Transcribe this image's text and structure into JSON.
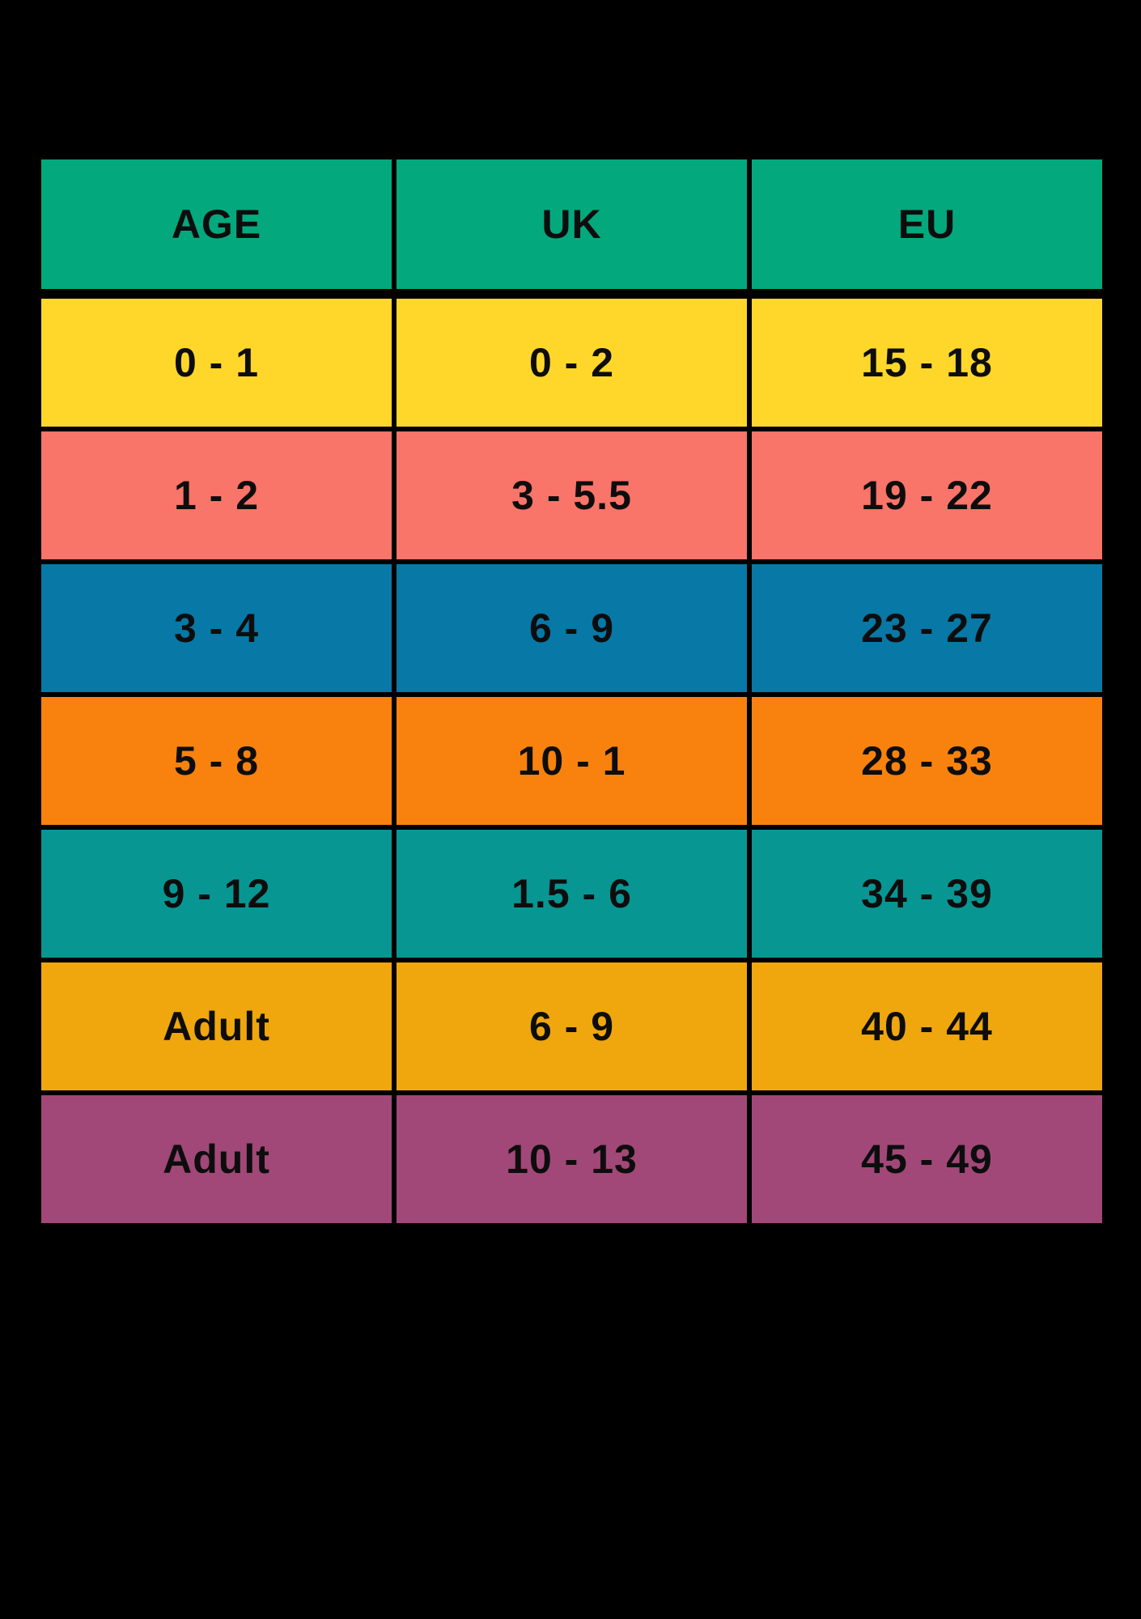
{
  "chart_data": {
    "type": "table",
    "title": "",
    "columns": [
      "AGE",
      "UK",
      "EU"
    ],
    "rows": [
      [
        "0 - 1",
        "0 - 2",
        "15 - 18"
      ],
      [
        "1 - 2",
        "3 - 5.5",
        "19 - 22"
      ],
      [
        "3 - 4",
        "6 - 9",
        "23 - 27"
      ],
      [
        "5 - 8",
        "10 - 1",
        "28 - 33"
      ],
      [
        "9 - 12",
        "1.5 - 6",
        "34 - 39"
      ],
      [
        "Adult",
        "6 - 9",
        "40 - 44"
      ],
      [
        "Adult",
        "10 - 13",
        "45 - 49"
      ]
    ],
    "header_color": "#04A87D",
    "row_colors": [
      "#FFD72B",
      "#F97469",
      "#0878A6",
      "#F8820D",
      "#089693",
      "#EFA70D",
      "#A14878"
    ],
    "background": "#000000",
    "text_color": "#0D0D0D",
    "layout_hints": "grid table, black gutters between cells, thicker gutter below header"
  }
}
